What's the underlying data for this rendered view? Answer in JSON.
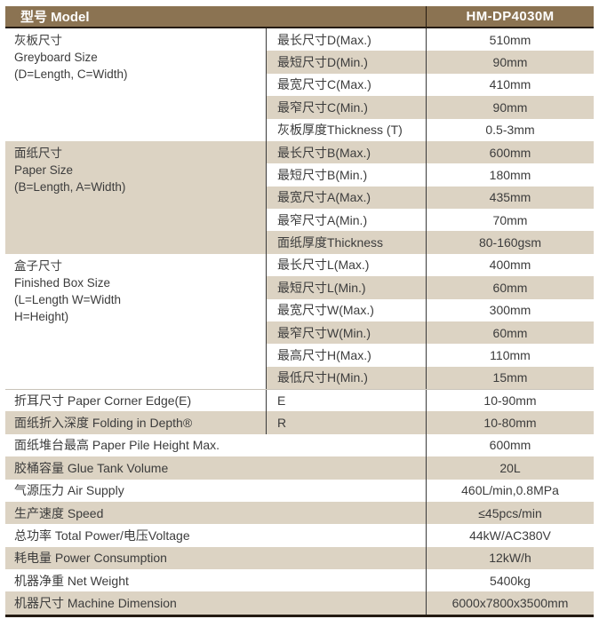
{
  "colors": {
    "header_bg": "#8b7352",
    "header_text": "#ffffff",
    "row_alt_bg": "#dcd3c3",
    "border_dark": "#241b12",
    "divider_dark": "#3a3a3a",
    "body_text": "#3c3c3c"
  },
  "header": {
    "model_label": "型号 Model",
    "model_value": "HM-DP4030M"
  },
  "table": {
    "groups": [
      {
        "category": [
          "灰板尺寸",
          "Greyboard Size",
          "(D=Length, C=Width)"
        ],
        "category_bg": "white",
        "rows": [
          {
            "param": "最长尺寸D(Max.)",
            "value": "510mm",
            "shade": false
          },
          {
            "param": "最短尺寸D(Min.)",
            "value": "90mm",
            "shade": true
          },
          {
            "param": "最宽尺寸C(Max.)",
            "value": "410mm",
            "shade": false
          },
          {
            "param": "最窄尺寸C(Min.)",
            "value": "90mm",
            "shade": true
          },
          {
            "param": "灰板厚度Thickness (T)",
            "value": "0.5-3mm",
            "shade": false
          }
        ]
      },
      {
        "category": [
          "面纸尺寸",
          "Paper Size",
          "(B=Length, A=Width)"
        ],
        "category_bg": "tan",
        "rows": [
          {
            "param": "最长尺寸B(Max.)",
            "value": "600mm",
            "shade": true
          },
          {
            "param": "最短尺寸B(Min.)",
            "value": "180mm",
            "shade": false
          },
          {
            "param": "最宽尺寸A(Max.)",
            "value": "435mm",
            "shade": true
          },
          {
            "param": "最窄尺寸A(Min.)",
            "value": "70mm",
            "shade": false
          },
          {
            "param": "面纸厚度Thickness",
            "value": "80-160gsm",
            "shade": true
          }
        ]
      },
      {
        "category": [
          "盒子尺寸",
          "Finished Box Size",
          "(L=Length  W=Width",
          "H=Height)"
        ],
        "category_bg": "white",
        "rows": [
          {
            "param": "最长尺寸L(Max.)",
            "value": "400mm",
            "shade": false
          },
          {
            "param": "最短尺寸L(Min.)",
            "value": "60mm",
            "shade": true
          },
          {
            "param": "最宽尺寸W(Max.)",
            "value": "300mm",
            "shade": false
          },
          {
            "param": "最窄尺寸W(Min.)",
            "value": "60mm",
            "shade": true
          },
          {
            "param": "最高尺寸H(Max.)",
            "value": "110mm",
            "shade": false
          },
          {
            "param": "最低尺寸H(Min.)",
            "value": "15mm",
            "shade": true
          }
        ]
      }
    ],
    "mid_rows": [
      {
        "label": "折耳尺寸 Paper Corner Edge(E)",
        "param": "E",
        "value": "10-90mm",
        "shade": false
      },
      {
        "label": "面纸折入深度 Folding in Depth®",
        "param": "R",
        "value": "10-80mm",
        "shade": true
      }
    ],
    "full_rows": [
      {
        "label": "面纸堆台最高 Paper Pile Height Max.",
        "value": "600mm",
        "shade": false
      },
      {
        "label": "胶桶容量 Glue Tank Volume",
        "value": "20L",
        "shade": true
      },
      {
        "label": "气源压力 Air Supply",
        "value": "460L/min,0.8MPa",
        "shade": false
      },
      {
        "label": "生产速度 Speed",
        "value": "≤45pcs/min",
        "shade": true
      },
      {
        "label": "总功率 Total Power/电压Voltage",
        "value": "44kW/AC380V",
        "shade": false
      },
      {
        "label": "耗电量 Power Consumption",
        "value": "12kW/h",
        "shade": true
      },
      {
        "label": "机器净重 Net Weight",
        "value": "5400kg",
        "shade": false
      },
      {
        "label": "机器尺寸 Machine Dimension",
        "value": "6000x7800x3500mm",
        "shade": true
      }
    ]
  }
}
